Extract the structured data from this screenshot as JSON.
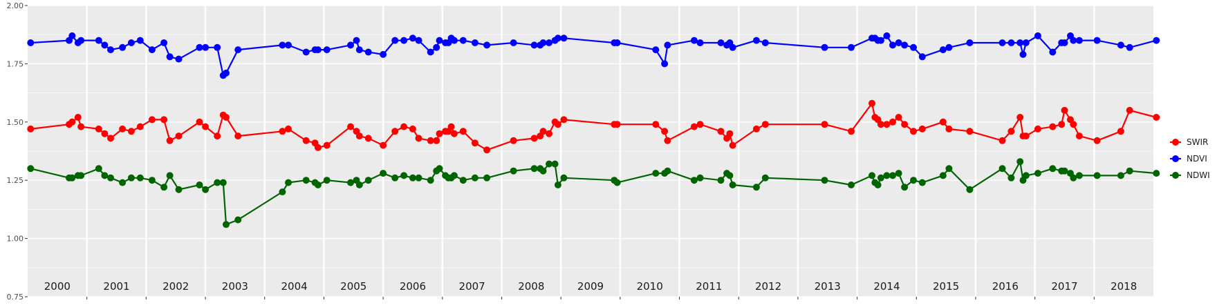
{
  "chart_data": {
    "type": "line",
    "title": "",
    "xlabel": "",
    "ylabel": "",
    "xlim": [
      2000,
      2019
    ],
    "ylim": [
      0.75,
      2.0
    ],
    "y_ticks": [
      "0.75",
      "1.00",
      "1.25",
      "1.50",
      "1.75",
      "2.00"
    ],
    "y_tick_values": [
      0.75,
      1.0,
      1.25,
      1.5,
      1.75,
      2.0
    ],
    "year_labels": [
      "2000",
      "2001",
      "2002",
      "2003",
      "2004",
      "2005",
      "2006",
      "2007",
      "2008",
      "2009",
      "2010",
      "2011",
      "2012",
      "2013",
      "2014",
      "2015",
      "2016",
      "2017",
      "2018"
    ],
    "grid": true,
    "legend_position": "right",
    "colors": {
      "panel": "#ebebeb",
      "grid": "#ffffff"
    },
    "series": [
      {
        "name": "SWIR",
        "color": "#ff0000",
        "x": [
          2000.05,
          2000.7,
          2000.75,
          2000.85,
          2000.9,
          2001.2,
          2001.3,
          2001.4,
          2001.6,
          2001.75,
          2001.9,
          2002.1,
          2002.3,
          2002.4,
          2002.55,
          2002.9,
          2003.0,
          2003.2,
          2003.3,
          2003.35,
          2003.55,
          2004.3,
          2004.4,
          2004.7,
          2004.85,
          2004.9,
          2005.05,
          2005.45,
          2005.55,
          2005.6,
          2005.75,
          2006.0,
          2006.2,
          2006.35,
          2006.5,
          2006.6,
          2006.8,
          2006.9,
          2006.95,
          2007.05,
          2007.1,
          2007.15,
          2007.2,
          2007.35,
          2007.55,
          2007.75,
          2008.2,
          2008.55,
          2008.65,
          2008.7,
          2008.8,
          2008.9,
          2008.95,
          2009.05,
          2009.9,
          2009.95,
          2010.6,
          2010.75,
          2010.8,
          2011.25,
          2011.35,
          2011.7,
          2011.8,
          2011.85,
          2011.9,
          2012.3,
          2012.45,
          2013.45,
          2013.9,
          2014.25,
          2014.3,
          2014.35,
          2014.4,
          2014.5,
          2014.6,
          2014.7,
          2014.8,
          2014.95,
          2015.1,
          2015.45,
          2015.55,
          2015.9,
          2016.45,
          2016.6,
          2016.75,
          2016.8,
          2016.85,
          2017.05,
          2017.3,
          2017.45,
          2017.5,
          2017.6,
          2017.65,
          2017.75,
          2018.05,
          2018.45,
          2018.6,
          2019.05
        ],
        "y": [
          1.47,
          1.49,
          1.5,
          1.52,
          1.48,
          1.47,
          1.45,
          1.43,
          1.47,
          1.46,
          1.48,
          1.51,
          1.51,
          1.42,
          1.44,
          1.5,
          1.48,
          1.44,
          1.53,
          1.52,
          1.44,
          1.46,
          1.47,
          1.42,
          1.41,
          1.39,
          1.4,
          1.48,
          1.46,
          1.44,
          1.43,
          1.4,
          1.46,
          1.48,
          1.47,
          1.43,
          1.42,
          1.42,
          1.45,
          1.46,
          1.46,
          1.48,
          1.45,
          1.46,
          1.41,
          1.38,
          1.42,
          1.43,
          1.44,
          1.46,
          1.45,
          1.5,
          1.49,
          1.51,
          1.49,
          1.49,
          1.49,
          1.46,
          1.42,
          1.48,
          1.49,
          1.46,
          1.43,
          1.45,
          1.4,
          1.47,
          1.49,
          1.49,
          1.46,
          1.58,
          1.52,
          1.51,
          1.49,
          1.49,
          1.5,
          1.52,
          1.49,
          1.46,
          1.47,
          1.5,
          1.47,
          1.46,
          1.42,
          1.46,
          1.52,
          1.44,
          1.44,
          1.47,
          1.48,
          1.49,
          1.55,
          1.51,
          1.49,
          1.44,
          1.42,
          1.46,
          1.55,
          1.52
        ]
      },
      {
        "name": "NDVI",
        "color": "#0000ff",
        "x": [
          2000.05,
          2000.7,
          2000.75,
          2000.85,
          2000.9,
          2001.2,
          2001.3,
          2001.4,
          2001.6,
          2001.75,
          2001.9,
          2002.1,
          2002.3,
          2002.4,
          2002.55,
          2002.9,
          2003.0,
          2003.2,
          2003.3,
          2003.35,
          2003.55,
          2004.3,
          2004.4,
          2004.7,
          2004.85,
          2004.9,
          2005.05,
          2005.45,
          2005.55,
          2005.6,
          2005.75,
          2006.0,
          2006.2,
          2006.35,
          2006.5,
          2006.6,
          2006.8,
          2006.9,
          2006.95,
          2007.05,
          2007.1,
          2007.15,
          2007.2,
          2007.35,
          2007.55,
          2007.75,
          2008.2,
          2008.55,
          2008.65,
          2008.7,
          2008.8,
          2008.9,
          2008.95,
          2009.05,
          2009.9,
          2009.95,
          2010.6,
          2010.75,
          2010.8,
          2011.25,
          2011.35,
          2011.7,
          2011.8,
          2011.85,
          2011.9,
          2012.3,
          2012.45,
          2013.45,
          2013.9,
          2014.25,
          2014.3,
          2014.35,
          2014.4,
          2014.5,
          2014.6,
          2014.7,
          2014.8,
          2014.95,
          2015.1,
          2015.45,
          2015.55,
          2015.9,
          2016.45,
          2016.6,
          2016.75,
          2016.8,
          2016.85,
          2017.05,
          2017.3,
          2017.45,
          2017.5,
          2017.6,
          2017.65,
          2017.75,
          2018.05,
          2018.45,
          2018.6,
          2019.05
        ],
        "y": [
          1.84,
          1.85,
          1.87,
          1.84,
          1.85,
          1.85,
          1.83,
          1.81,
          1.82,
          1.84,
          1.85,
          1.81,
          1.84,
          1.78,
          1.77,
          1.82,
          1.82,
          1.82,
          1.7,
          1.71,
          1.81,
          1.83,
          1.83,
          1.8,
          1.81,
          1.81,
          1.81,
          1.83,
          1.85,
          1.81,
          1.8,
          1.79,
          1.85,
          1.85,
          1.86,
          1.85,
          1.8,
          1.82,
          1.85,
          1.84,
          1.84,
          1.86,
          1.85,
          1.85,
          1.84,
          1.83,
          1.84,
          1.83,
          1.83,
          1.84,
          1.84,
          1.85,
          1.86,
          1.86,
          1.84,
          1.84,
          1.81,
          1.75,
          1.83,
          1.85,
          1.84,
          1.84,
          1.83,
          1.84,
          1.82,
          1.85,
          1.84,
          1.82,
          1.82,
          1.86,
          1.86,
          1.85,
          1.85,
          1.87,
          1.83,
          1.84,
          1.83,
          1.82,
          1.78,
          1.81,
          1.82,
          1.84,
          1.84,
          1.84,
          1.84,
          1.79,
          1.84,
          1.87,
          1.8,
          1.84,
          1.84,
          1.87,
          1.85,
          1.85,
          1.85,
          1.83,
          1.82,
          1.85
        ]
      },
      {
        "name": "NDWI",
        "color": "#006400",
        "x": [
          2000.05,
          2000.7,
          2000.75,
          2000.85,
          2000.9,
          2001.2,
          2001.3,
          2001.4,
          2001.6,
          2001.75,
          2001.9,
          2002.1,
          2002.3,
          2002.4,
          2002.55,
          2002.9,
          2003.0,
          2003.2,
          2003.3,
          2003.35,
          2003.55,
          2004.3,
          2004.4,
          2004.7,
          2004.85,
          2004.9,
          2005.05,
          2005.45,
          2005.55,
          2005.6,
          2005.75,
          2006.0,
          2006.2,
          2006.35,
          2006.5,
          2006.6,
          2006.8,
          2006.9,
          2006.95,
          2007.05,
          2007.1,
          2007.15,
          2007.2,
          2007.35,
          2007.55,
          2007.75,
          2008.2,
          2008.55,
          2008.65,
          2008.7,
          2008.8,
          2008.9,
          2008.95,
          2009.05,
          2009.9,
          2009.95,
          2010.6,
          2010.75,
          2010.8,
          2011.25,
          2011.35,
          2011.7,
          2011.8,
          2011.85,
          2011.9,
          2012.3,
          2012.45,
          2013.45,
          2013.9,
          2014.25,
          2014.3,
          2014.35,
          2014.4,
          2014.5,
          2014.6,
          2014.7,
          2014.8,
          2014.95,
          2015.1,
          2015.45,
          2015.55,
          2015.9,
          2016.45,
          2016.6,
          2016.75,
          2016.8,
          2016.85,
          2017.05,
          2017.3,
          2017.45,
          2017.5,
          2017.6,
          2017.65,
          2017.75,
          2018.05,
          2018.45,
          2018.6,
          2019.05
        ],
        "y": [
          1.3,
          1.26,
          1.26,
          1.27,
          1.27,
          1.3,
          1.27,
          1.26,
          1.24,
          1.26,
          1.26,
          1.25,
          1.22,
          1.27,
          1.21,
          1.23,
          1.21,
          1.24,
          1.24,
          1.06,
          1.08,
          1.2,
          1.24,
          1.25,
          1.24,
          1.23,
          1.25,
          1.24,
          1.25,
          1.23,
          1.25,
          1.28,
          1.26,
          1.27,
          1.26,
          1.26,
          1.25,
          1.29,
          1.3,
          1.27,
          1.26,
          1.26,
          1.27,
          1.25,
          1.26,
          1.26,
          1.29,
          1.3,
          1.3,
          1.29,
          1.32,
          1.32,
          1.23,
          1.26,
          1.25,
          1.24,
          1.28,
          1.28,
          1.29,
          1.25,
          1.26,
          1.25,
          1.28,
          1.27,
          1.23,
          1.22,
          1.26,
          1.25,
          1.23,
          1.27,
          1.24,
          1.23,
          1.26,
          1.27,
          1.27,
          1.28,
          1.22,
          1.25,
          1.24,
          1.27,
          1.3,
          1.21,
          1.3,
          1.26,
          1.33,
          1.25,
          1.27,
          1.28,
          1.3,
          1.29,
          1.29,
          1.28,
          1.26,
          1.27,
          1.27,
          1.27,
          1.29,
          1.28
        ]
      }
    ]
  }
}
